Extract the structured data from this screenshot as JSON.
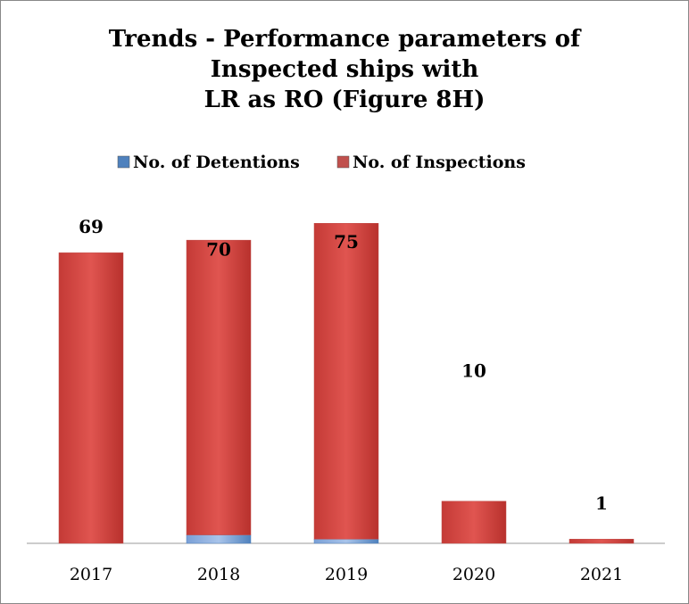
{
  "chart_data": {
    "type": "stacked_bar",
    "title": [
      "Trends - Performance parameters of",
      "Inspected ships with",
      "LR as RO (Figure 8H)"
    ],
    "categories": [
      "2017",
      "2018",
      "2019",
      "2020",
      "2021"
    ],
    "series": [
      {
        "name": "No. of Detentions",
        "color": "#4f81bd",
        "values": [
          0,
          2,
          1,
          0,
          0
        ]
      },
      {
        "name": "No. of Inspections",
        "color": "#c0504d",
        "values": [
          69,
          70,
          75,
          10,
          1
        ]
      }
    ]
  }
}
